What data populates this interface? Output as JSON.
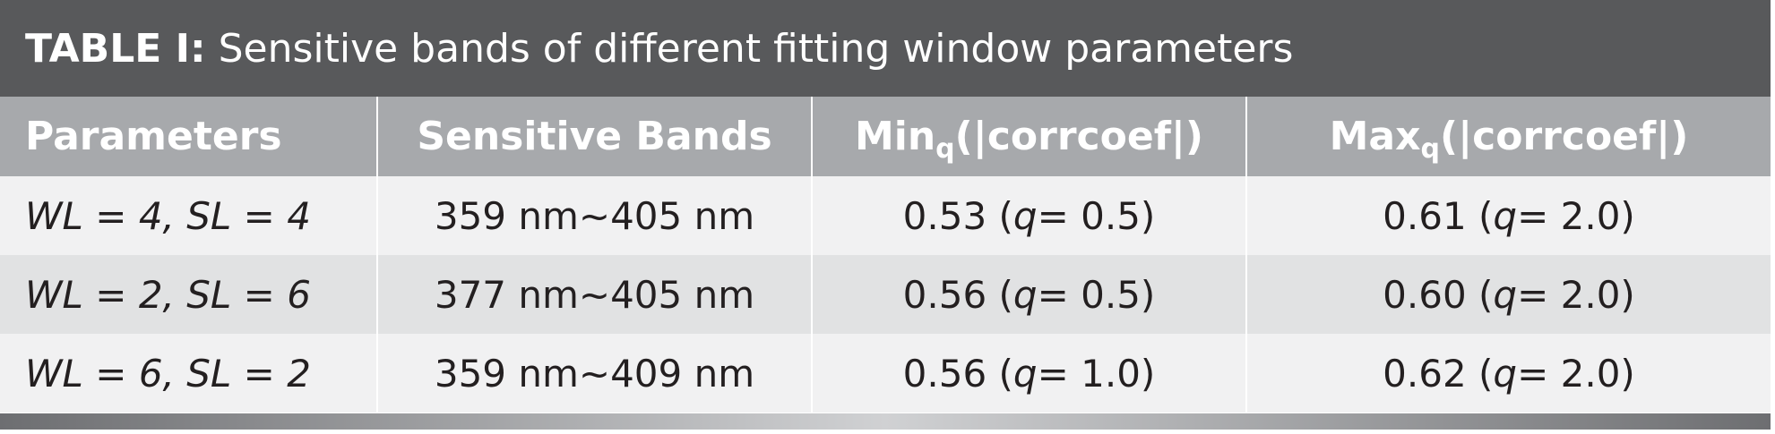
{
  "title": {
    "label": "TABLE I:",
    "text": "Sensitive bands of different fitting window parameters"
  },
  "table": {
    "header": [
      [
        "Parameters"
      ],
      [
        "Sensitive Bands"
      ],
      [
        "Min",
        "q",
        "(|corrcoef|)"
      ],
      [
        "Max",
        "q",
        "(|corrcoef|)"
      ]
    ],
    "rows": [
      [
        [
          "WL = 4, SL = 4"
        ],
        [
          "359 nm~405 nm"
        ],
        [
          "0.53 (",
          "q",
          " = 0.5)"
        ],
        [
          "0.61 (",
          "q",
          " = 2.0)"
        ]
      ],
      [
        [
          "WL = 2, SL = 6"
        ],
        [
          "377 nm~405 nm"
        ],
        [
          "0.56 (",
          "q",
          " = 0.5)"
        ],
        [
          "0.60 (",
          "q",
          " = 2.0)"
        ]
      ],
      [
        [
          "WL = 6, SL = 2"
        ],
        [
          "359 nm~409 nm"
        ],
        [
          "0.56 (",
          "q",
          " = 1.0)"
        ],
        [
          "0.62 (",
          "q",
          " = 2.0)"
        ]
      ]
    ]
  }
}
